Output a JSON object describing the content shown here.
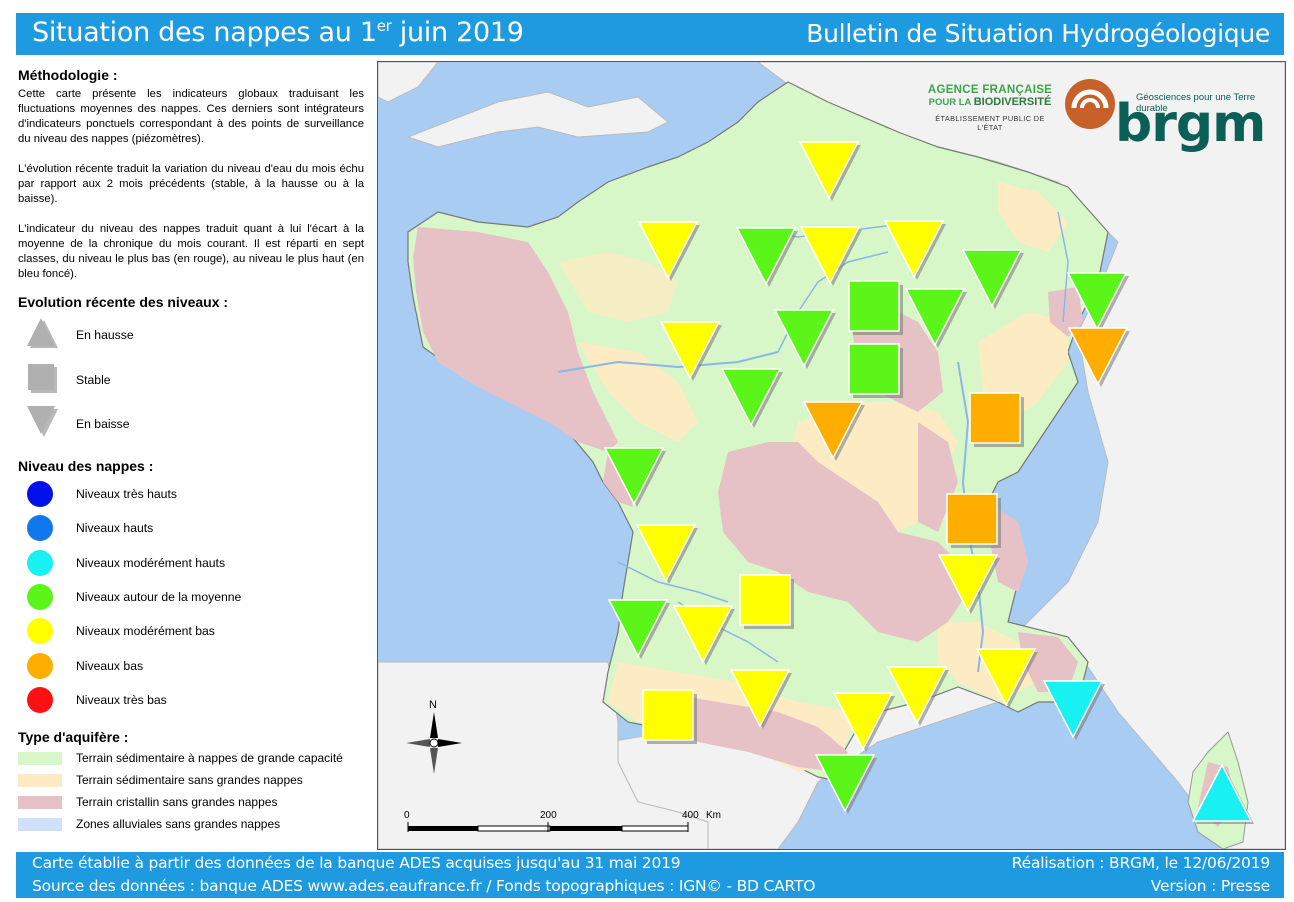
{
  "header": {
    "title_main": "Situation des nappes au 1",
    "title_sup": "er",
    "title_end": " juin 2019",
    "right": "Bulletin de Situation Hydrogéologique"
  },
  "footer": {
    "line1_left": "Carte établie à partir des données de la banque ADES acquises jusqu'au 31 mai 2019",
    "line2_left": "Source des données : banque ADES www.ades.eaufrance.fr / Fonds topographiques : IGN© - BD CARTO",
    "line1_right": "Réalisation : BRGM, le 12/06/2019",
    "line2_right": "Version : Presse"
  },
  "methodology": {
    "title": "Méthodologie :",
    "p1": "Cette carte présente les indicateurs globaux traduisant les fluctuations moyennes des nappes. Ces derniers sont intégrateurs d'indicateurs ponctuels correspondant à des points de surveillance du niveau des nappes (piézomètres).",
    "p2": "L'évolution récente traduit la variation du niveau d'eau du mois échu par rapport aux 2 mois précédents (stable, à la hausse ou à la baisse).",
    "p3": "L'indicateur du niveau des nappes traduit quant à lui l'écart à la moyenne de la chronique du mois courant. Il est réparti en sept classes, du niveau le plus bas (en rouge), au niveau le plus haut (en bleu foncé)."
  },
  "evolution_legend": {
    "title": "Evolution récente des niveaux :",
    "items": [
      {
        "label": "En hausse",
        "shape": "triangle-up"
      },
      {
        "label": "Stable",
        "shape": "square"
      },
      {
        "label": "En baisse",
        "shape": "triangle-down"
      }
    ]
  },
  "level_legend": {
    "title": "Niveau des nappes :",
    "items": [
      {
        "label": "Niveaux très hauts",
        "color": "#0011ee"
      },
      {
        "label": "Niveaux hauts",
        "color": "#1177ee"
      },
      {
        "label": "Niveaux modérément hauts",
        "color": "#19f0f2"
      },
      {
        "label": "Niveaux autour de la moyenne",
        "color": "#5bf51a"
      },
      {
        "label": "Niveaux modérément bas",
        "color": "#ffff00"
      },
      {
        "label": "Niveaux bas",
        "color": "#ffae00"
      },
      {
        "label": "Niveaux très bas",
        "color": "#ff1111"
      }
    ]
  },
  "aquifer_legend": {
    "title": "Type d'aquifère :",
    "items": [
      {
        "label": "Terrain sédimentaire à nappes de grande capacité",
        "color": "#d8f7c8"
      },
      {
        "label": "Terrain sédimentaire sans grandes nappes",
        "color": "#fdebc4"
      },
      {
        "label": "Terrain cristallin sans grandes nappes",
        "color": "#e6c2c6"
      },
      {
        "label": "Zones alluviales sans grandes nappes",
        "color": "#cfe0fa"
      }
    ]
  },
  "map": {
    "north_label": "N",
    "scale": {
      "t0": "0",
      "t1": "200",
      "t2": "400",
      "unit": "Km"
    },
    "logos": {
      "afb_line1": "AGENCE FRANÇAISE",
      "afb_line2a": "POUR LA ",
      "afb_line2b": "BIODIVERSITÉ",
      "afb_line3": "ÉTABLISSEMENT PUBLIC DE L'ÉTAT",
      "brgm_tagline": "Géosciences pour une Terre durable",
      "brgm_word": "brgm"
    }
  },
  "colors": {
    "green": "#5bf51a",
    "yellow": "#ffff00",
    "orange": "#ffae00",
    "cyan": "#19f0f2",
    "sea": "#a8ccf2"
  }
}
